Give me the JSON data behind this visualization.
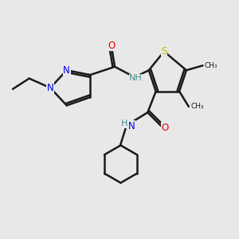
{
  "bg_color": "#e8e8e8",
  "bond_color": "#1a1a1a",
  "bond_width": 1.8,
  "atom_colors": {
    "N": "#0000ee",
    "O": "#ee0000",
    "S": "#bbbb00",
    "NH": "#4a9090",
    "C": "#1a1a1a"
  },
  "font_size": 8.5,
  "fig_size": [
    3.0,
    3.0
  ],
  "dpi": 100,
  "xlim": [
    0,
    10
  ],
  "ylim": [
    0,
    10
  ]
}
